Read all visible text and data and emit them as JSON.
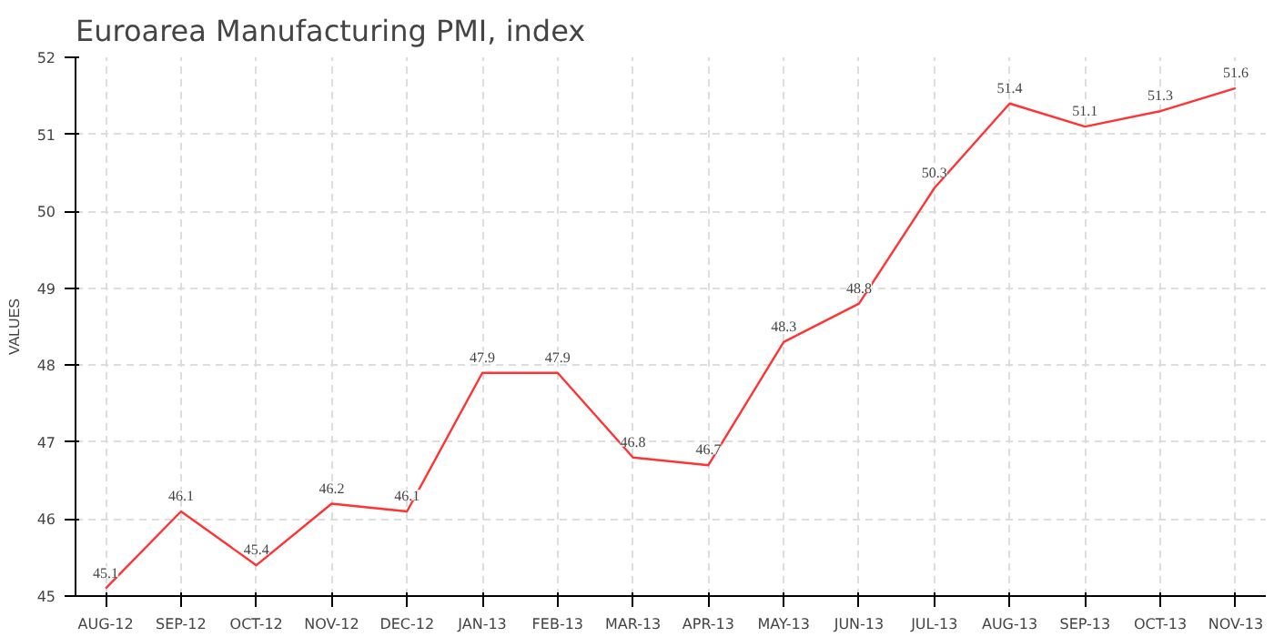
{
  "chart_data": {
    "type": "line",
    "title": "Euroarea Manufacturing PMI, index",
    "ylabel": "VALUES",
    "categories": [
      "AUG-12",
      "SEP-12",
      "OCT-12",
      "NOV-12",
      "DEC-12",
      "JAN-13",
      "FEB-13",
      "MAR-13",
      "APR-13",
      "MAY-13",
      "JUN-13",
      "JUL-13",
      "AUG-13",
      "SEP-13",
      "OCT-13",
      "NOV-13"
    ],
    "series": [
      {
        "color": "#ff3333",
        "values": [
          45.1,
          46.1,
          45.4,
          46.2,
          46.1,
          47.9,
          47.9,
          46.8,
          46.7,
          48.3,
          48.8,
          50.3,
          51.4,
          51.1,
          51.3,
          51.6
        ]
      }
    ],
    "ylim": [
      45,
      52
    ],
    "yticks": [
      45,
      46,
      47,
      48,
      49,
      50,
      51,
      52
    ],
    "grid": true,
    "data_labels": true,
    "marker": "none",
    "line_style": "solid"
  }
}
